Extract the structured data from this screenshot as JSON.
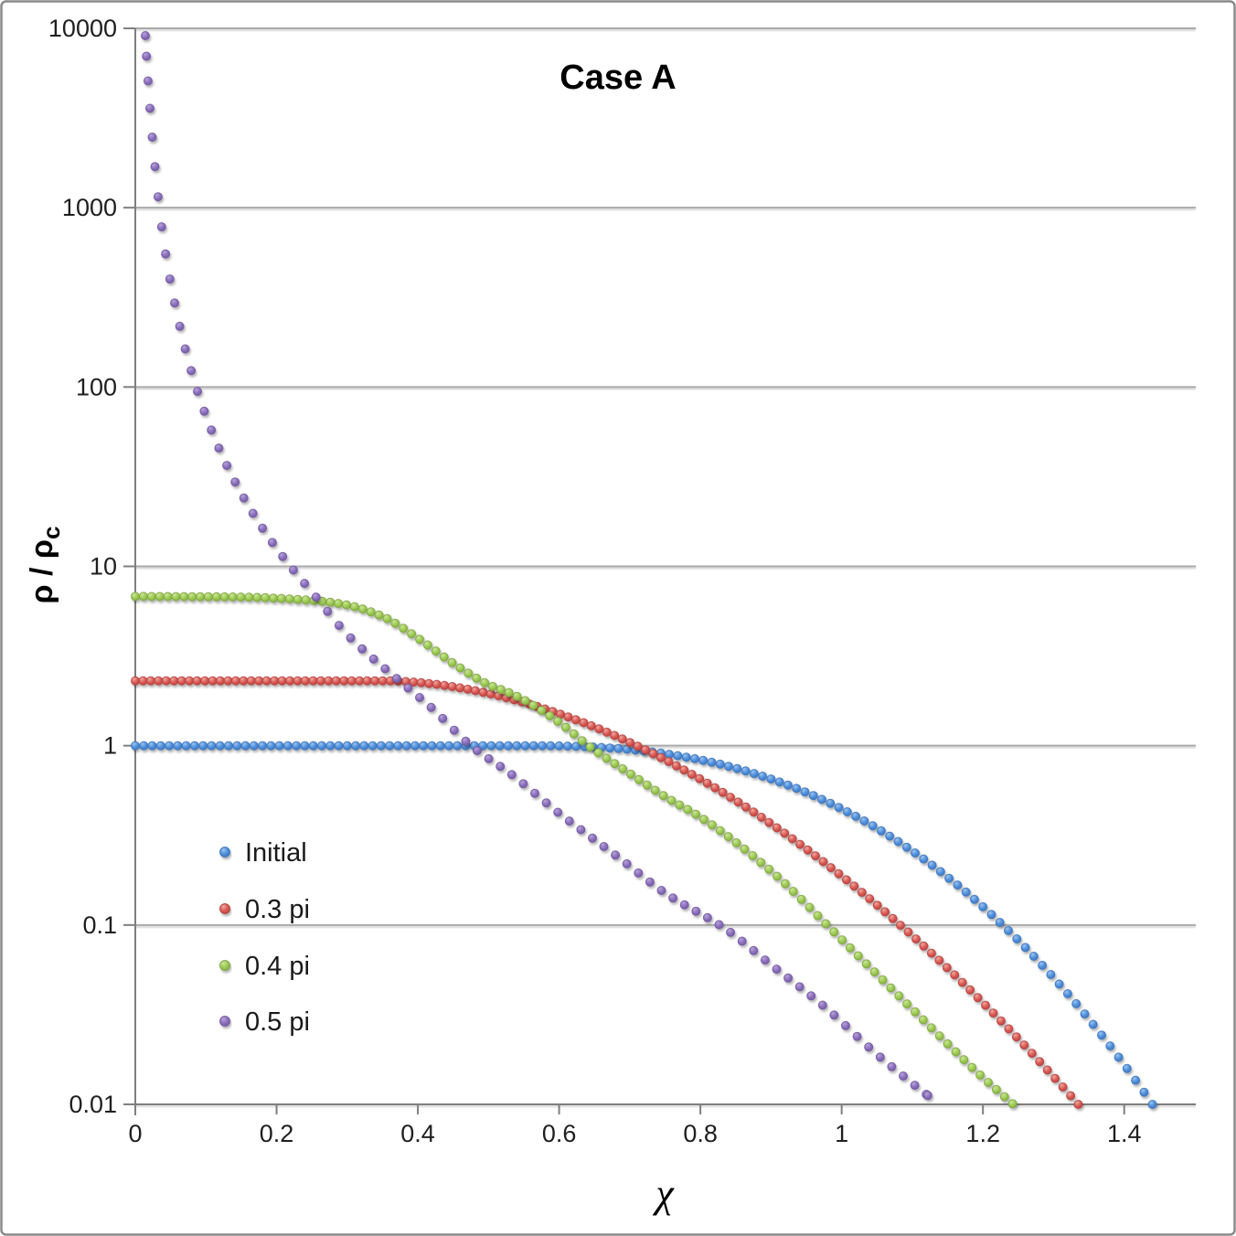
{
  "frame": {
    "border_color": "#8A8A8A",
    "background": "#FFFFFF"
  },
  "chart_data": {
    "type": "scatter",
    "title": "Case A",
    "xlabel": "χ",
    "ylabel_main": "ρ / ρ",
    "ylabel_sub": "c",
    "x_axis": {
      "min": 0,
      "max": 1.5,
      "tick_step": 0.2,
      "tick_values": [
        0,
        0.2,
        0.4,
        0.6,
        0.8,
        1.0,
        1.2,
        1.4
      ],
      "tick_labels": [
        "0",
        "0.2",
        "0.4",
        "0.6",
        "0.8",
        "1",
        "1.2",
        "1.4"
      ]
    },
    "y_axis": {
      "scale": "log",
      "min": 0.01,
      "max": 10000,
      "tick_values": [
        10000,
        1000,
        100,
        10,
        1,
        0.1,
        0.01
      ],
      "tick_labels": [
        "10000",
        "1000",
        "100",
        "10",
        "1",
        "0.1",
        "0.01"
      ]
    },
    "grid": {
      "horizontal_decades": true,
      "vertical": false,
      "color": "#A9A9A9",
      "axis_color": "#7F7F7F"
    },
    "legend": {
      "position": "inside-left",
      "items": [
        "Initial",
        "0.3 pi",
        "0.4 pi",
        "0.5 pi"
      ]
    },
    "series": [
      {
        "name": "Initial",
        "colors": {
          "highlight": "#9CC3EE",
          "mid": "#4E8EDC",
          "edge": "#3A72B8"
        },
        "gen": {
          "kind": "plateau",
          "n": 121,
          "end": 1.44,
          "base": 0,
          "drop": -2,
          "c": 0.55,
          "span": 0.89,
          "p": 2.546
        },
        "readings": {
          "chi": [
            0,
            0.2,
            0.4,
            0.6,
            0.8,
            1.0,
            1.2,
            1.44
          ],
          "rho": [
            1.0,
            1.0,
            1.0,
            0.99,
            0.83,
            0.44,
            0.13,
            0.01
          ]
        }
      },
      {
        "name": "0.3 pi",
        "colors": {
          "highlight": "#F0A8A0",
          "mid": "#D95853",
          "edge": "#B23F3C"
        },
        "gen": {
          "kind": "plateau",
          "n": 123,
          "end": 1.335,
          "base": 0.362,
          "drop": -2.362,
          "c": 0.35,
          "span": 0.985,
          "p": 1.863
        },
        "readings": {
          "chi": [
            0,
            0.2,
            0.4,
            0.6,
            0.8,
            1.0,
            1.2,
            1.335
          ],
          "rho": [
            2.3,
            2.3,
            2.28,
            1.5,
            0.65,
            0.19,
            0.037,
            0.01
          ]
        }
      },
      {
        "name": "0.4 pi",
        "colors": {
          "highlight": "#CCE59A",
          "mid": "#9CCB53",
          "edge": "#7DA33E"
        },
        "gen": {
          "kind": "anchors",
          "space": "linear",
          "grid": {
            "type": "uniform",
            "start": 0,
            "end": 1.243,
            "step": 0.0115
          },
          "anchor_chi": [
            0,
            0.15,
            0.25,
            0.3,
            0.35,
            0.4,
            0.45,
            0.5,
            0.535,
            0.6,
            0.643,
            0.7,
            0.75,
            0.8,
            0.9,
            1.0,
            1.1,
            1.2,
            1.243
          ],
          "anchor_rho": [
            6.8,
            6.74,
            6.46,
            6.09,
            5.25,
            3.98,
            2.88,
            2.19,
            1.93,
            1.35,
            0.99,
            0.7,
            0.52,
            0.4,
            0.2,
            0.083,
            0.034,
            0.0141,
            0.01
          ]
        },
        "readings": {
          "chi": [
            0,
            0.3,
            0.535,
            0.643,
            0.973,
            1.243
          ],
          "rho": [
            6.8,
            6.1,
            1.93,
            0.99,
            0.1,
            0.01
          ]
        }
      },
      {
        "name": "0.5 pi",
        "colors": {
          "highlight": "#B7A3D8",
          "mid": "#8A6FBC",
          "edge": "#6F549E"
        },
        "gen": {
          "kind": "anchors",
          "space": "log",
          "grid": {
            "type": "ramp",
            "start": 0.0142,
            "end": 1.122,
            "d0": 0.0016,
            "d1": 0.0163,
            "ramp": 26
          },
          "anchor_chi": [
            0.0142,
            0.02,
            0.03,
            0.0375,
            0.06,
            0.1,
            0.15,
            0.2,
            0.255,
            0.3,
            0.374,
            0.42,
            0.475,
            0.533,
            0.6,
            0.683,
            0.75,
            0.835,
            0.9,
            0.977,
            1.05,
            1.122
          ],
          "anchor_rho": [
            9100,
            3900,
            1400,
            770,
            245,
            69,
            25.5,
            12.6,
            6.8,
            4.17,
            2.3,
            1.62,
            1.0,
            0.69,
            0.42,
            0.24,
            0.151,
            0.0955,
            0.06,
            0.0347,
            0.019,
            0.0112
          ]
        },
        "readings": {
          "chi": [
            0.0142,
            0.1,
            0.255,
            0.374,
            0.475,
            0.835,
            1.122
          ],
          "rho": [
            9100,
            69,
            6.8,
            2.3,
            1.0,
            0.095,
            0.011
          ]
        }
      }
    ]
  }
}
